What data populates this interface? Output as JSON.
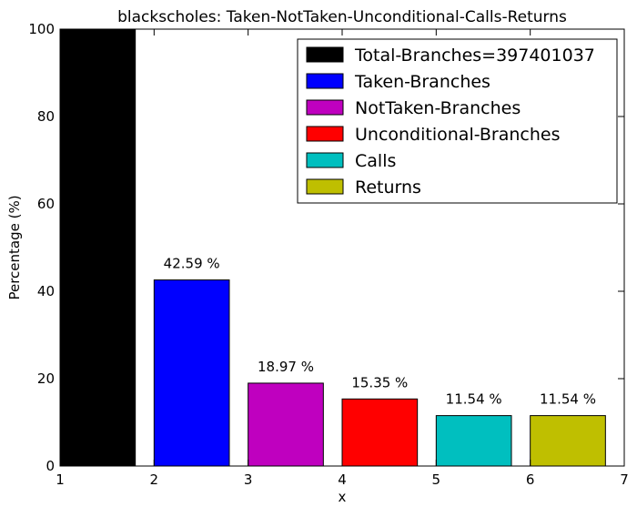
{
  "chart_data": {
    "type": "bar",
    "title": "blackscholes: Taken-NotTaken-Unconditional-Calls-Returns",
    "xlabel": "x",
    "ylabel": "Percentage (%)",
    "xlim": [
      1,
      7
    ],
    "ylim": [
      0,
      100
    ],
    "xticks": [
      "1",
      "2",
      "3",
      "4",
      "5",
      "6",
      "7"
    ],
    "yticks": [
      "0",
      "20",
      "40",
      "60",
      "80",
      "100"
    ],
    "grid": false,
    "legend_position": "top-right",
    "series": [
      {
        "name": "Total-Branches=397401037",
        "x": 1,
        "value": 100,
        "color": "#000000",
        "label": ""
      },
      {
        "name": "Taken-Branches",
        "x": 2,
        "value": 42.59,
        "color": "#0000ff",
        "label": "42.59 %"
      },
      {
        "name": "NotTaken-Branches",
        "x": 3,
        "value": 18.97,
        "color": "#bf00bf",
        "label": "18.97 %"
      },
      {
        "name": "Unconditional-Branches",
        "x": 4,
        "value": 15.35,
        "color": "#ff0000",
        "label": "15.35 %"
      },
      {
        "name": "Calls",
        "x": 5,
        "value": 11.54,
        "color": "#00bfbf",
        "label": "11.54 %"
      },
      {
        "name": "Returns",
        "x": 6,
        "value": 11.54,
        "color": "#bfbf00",
        "label": "11.54 %"
      }
    ]
  }
}
